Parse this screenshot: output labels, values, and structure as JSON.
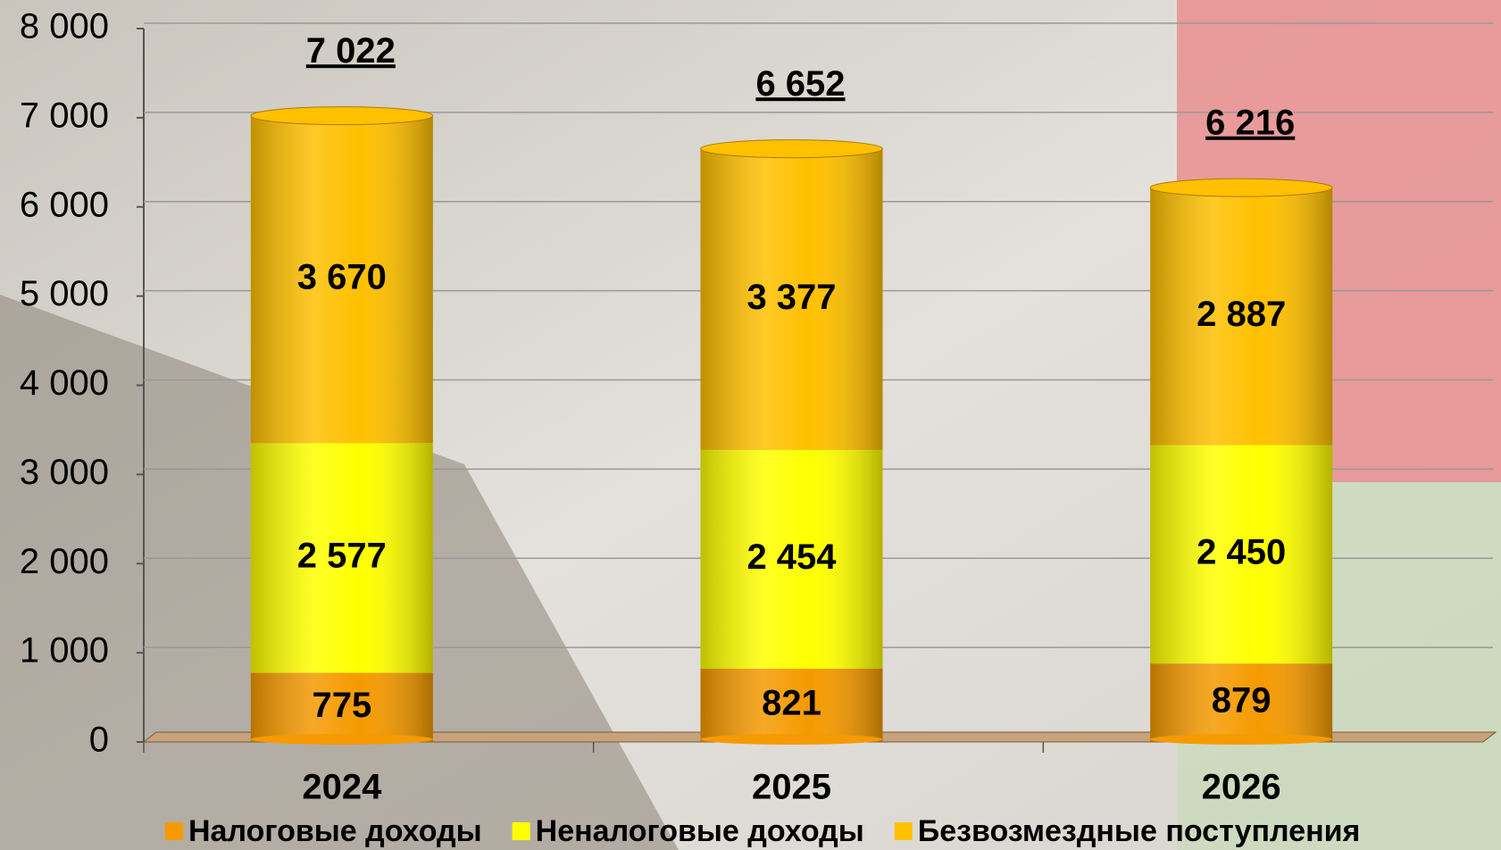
{
  "chart_data": {
    "type": "bar",
    "stacked": true,
    "categories": [
      "2024",
      "2025",
      "2026"
    ],
    "series": [
      {
        "name": "Налоговые доходы",
        "color": "#f59a00",
        "values": [
          775,
          821,
          879
        ],
        "value_labels": [
          "775",
          "821",
          "879"
        ]
      },
      {
        "name": "Неналоговые доходы",
        "color": "#ffff00",
        "values": [
          2577,
          2454,
          2450
        ],
        "value_labels": [
          "2 577",
          "2 454",
          "2 450"
        ]
      },
      {
        "name": "Безвозмездные поступления",
        "color": "#ffc000",
        "values": [
          3670,
          3377,
          2887
        ],
        "value_labels": [
          "3 670",
          "3 377",
          "2 887"
        ]
      }
    ],
    "totals": [
      7022,
      6652,
      6216
    ],
    "total_labels": [
      "7 022",
      "6 652",
      "6 216"
    ],
    "ylim": [
      0,
      8000
    ],
    "yticks": [
      {
        "value": 0,
        "label": "0"
      },
      {
        "value": 1000,
        "label": "1 000"
      },
      {
        "value": 2000,
        "label": "2 000"
      },
      {
        "value": 3000,
        "label": "3 000"
      },
      {
        "value": 4000,
        "label": "4 000"
      },
      {
        "value": 5000,
        "label": "5 000"
      },
      {
        "value": 6000,
        "label": "6 000"
      },
      {
        "value": 7000,
        "label": "7 000"
      },
      {
        "value": 8000,
        "label": "8 000"
      }
    ],
    "grid": true,
    "legend": "bottom"
  }
}
